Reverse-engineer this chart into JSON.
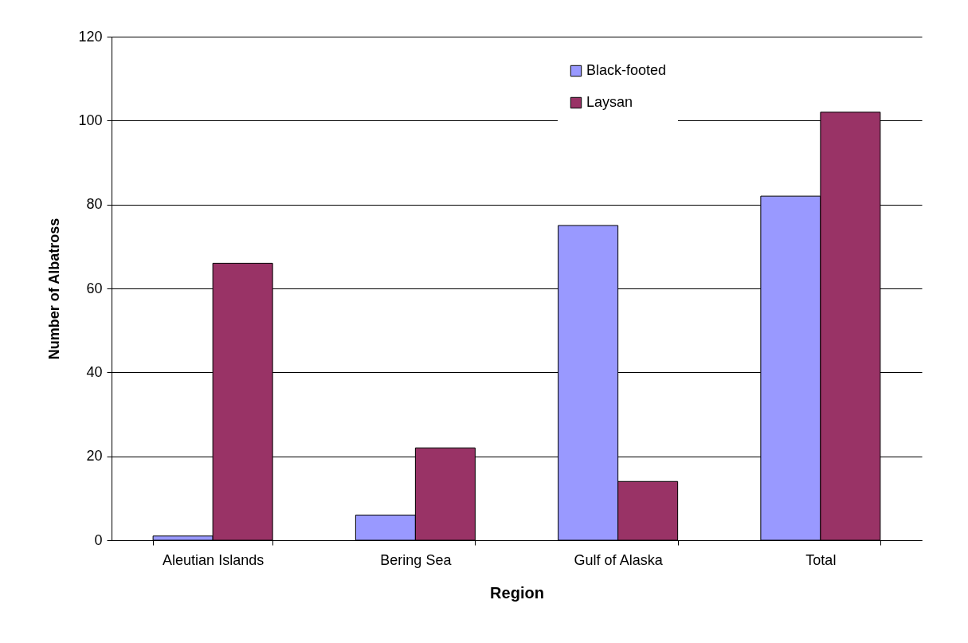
{
  "chart_data": {
    "type": "bar",
    "xlabel": "Region",
    "ylabel": "Number of Albatross",
    "categories": [
      "Aleutian Islands",
      "Bering Sea",
      "Gulf of Alaska",
      "Total"
    ],
    "series": [
      {
        "name": "Black-footed",
        "color": "#9999ff",
        "values": [
          1,
          6,
          75,
          82
        ]
      },
      {
        "name": "Laysan",
        "color": "#993366",
        "values": [
          66,
          22,
          14,
          102
        ]
      }
    ],
    "ylim": [
      0,
      120
    ],
    "yticks": [
      0,
      20,
      40,
      60,
      80,
      100,
      120
    ],
    "grid": "y",
    "legend": "top right"
  }
}
